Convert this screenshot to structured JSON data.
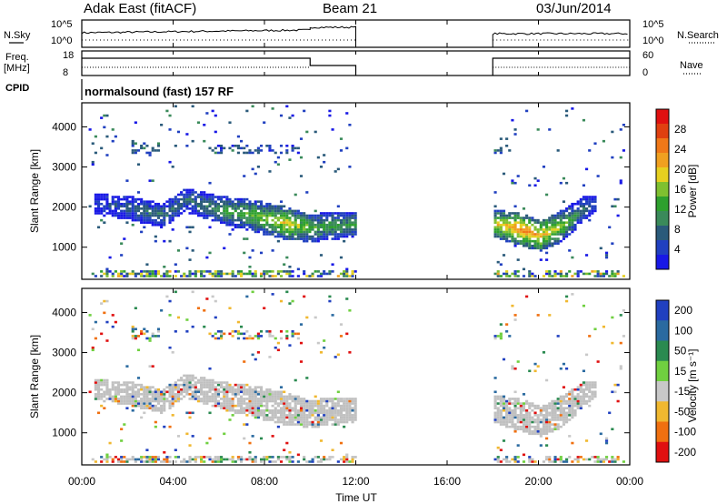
{
  "header": {
    "station": "Adak East (fitACF)",
    "beam": "Beam 21",
    "date": "03/Jun/2014"
  },
  "side_labels": {
    "nsky": "N.Sky",
    "nsearch": "N.Search",
    "freq": "Freq.",
    "freq_unit": "[MHz]",
    "nave": "Nave",
    "cpid": "CPID"
  },
  "cpid_text": "normalsound (fast) 157 RF",
  "noise_ticks": {
    "left": [
      "10^5",
      "10^0"
    ],
    "right": [
      "10^5",
      "10^0"
    ]
  },
  "freq_ticks": {
    "left": [
      "18",
      "8"
    ],
    "right": [
      "60",
      "0"
    ]
  },
  "x_axis": {
    "label": "Time UT",
    "ticks": [
      "00:00",
      "04:00",
      "08:00",
      "12:00",
      "16:00",
      "20:00",
      "00:00"
    ]
  },
  "range_ticks": [
    "1000",
    "2000",
    "3000",
    "4000"
  ],
  "colors": {
    "axis": "#000000",
    "ground_scatter": "#c0c0c0"
  },
  "chart_data": [
    {
      "type": "heatmap",
      "name": "power",
      "ylabel": "Slant Range [km]",
      "xlabel": "",
      "x_hours": [
        0,
        24
      ],
      "ylim": [
        200,
        4600
      ],
      "colorbar": {
        "label": "Power [dB]",
        "ticks": [
          "4",
          "8",
          "12",
          "16",
          "20",
          "24",
          "28"
        ],
        "colors": [
          "#1818e6",
          "#2040c0",
          "#2a5a7a",
          "#3a8a5a",
          "#2ea02e",
          "#7fc030",
          "#e6d020",
          "#f0a020",
          "#f07818",
          "#e04010",
          "#e01010"
        ]
      },
      "scatter_band": [
        {
          "hour": 0.5,
          "center": 2050,
          "width": 250,
          "db": 6
        },
        {
          "hour": 2.0,
          "center": 1950,
          "width": 300,
          "db": 8
        },
        {
          "hour": 3.5,
          "center": 1750,
          "width": 300,
          "db": 10
        },
        {
          "hour": 4.5,
          "center": 2150,
          "width": 300,
          "db": 9
        },
        {
          "hour": 6.0,
          "center": 1900,
          "width": 350,
          "db": 12
        },
        {
          "hour": 7.5,
          "center": 1750,
          "width": 400,
          "db": 15
        },
        {
          "hour": 9.0,
          "center": 1550,
          "width": 400,
          "db": 20
        },
        {
          "hour": 10.0,
          "center": 1450,
          "width": 350,
          "db": 14
        },
        {
          "hour": 11.0,
          "center": 1500,
          "width": 350,
          "db": 13
        },
        {
          "hour": 12.0,
          "center": 1550,
          "width": 300,
          "db": 12
        },
        {
          "hour": 18.0,
          "center": 1550,
          "width": 350,
          "db": 18
        },
        {
          "hour": 19.0,
          "center": 1450,
          "width": 400,
          "db": 24
        },
        {
          "hour": 20.0,
          "center": 1250,
          "width": 400,
          "db": 22
        },
        {
          "hour": 21.0,
          "center": 1500,
          "width": 400,
          "db": 16
        },
        {
          "hour": 22.0,
          "center": 1950,
          "width": 300,
          "db": 9
        },
        {
          "hour": 22.5,
          "center": 2050,
          "width": 200,
          "db": 6
        }
      ]
    },
    {
      "type": "heatmap",
      "name": "velocity",
      "ylabel": "Slant Range [km]",
      "xlabel": "Time UT",
      "x_hours": [
        0,
        24
      ],
      "ylim": [
        200,
        4600
      ],
      "colorbar": {
        "label": "Velocity [m s⁻¹]",
        "ticks": [
          "200",
          "100",
          "50",
          "15",
          "-15",
          "-50",
          "-100",
          "-200"
        ],
        "colors": [
          "#2040c0",
          "#2a6aa0",
          "#2a8a50",
          "#70d040",
          "#c8c8c8",
          "#f0b830",
          "#f07010",
          "#e01010"
        ]
      }
    }
  ]
}
